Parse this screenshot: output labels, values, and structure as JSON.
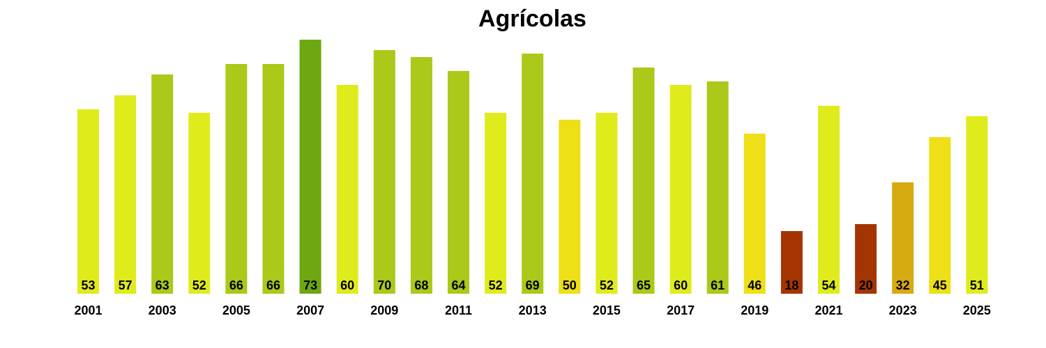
{
  "chart_data": {
    "type": "bar",
    "title": "Agrícolas",
    "xlabel": "",
    "ylabel": "",
    "grid": false,
    "categories": [
      "2001",
      "2002",
      "2003",
      "2004",
      "2005",
      "2006",
      "2007",
      "2008",
      "2009",
      "2010",
      "2011",
      "2012",
      "2013",
      "2014",
      "2015",
      "2016",
      "2017",
      "2018",
      "2019",
      "2020",
      "2021",
      "2022",
      "2023",
      "2024",
      "2025"
    ],
    "tick_labels": [
      "2001",
      "",
      "2003",
      "",
      "2005",
      "",
      "2007",
      "",
      "2009",
      "",
      "2011",
      "",
      "2013",
      "",
      "2015",
      "",
      "2017",
      "",
      "2019",
      "",
      "2021",
      "",
      "2023",
      "",
      "2025"
    ],
    "values": [
      53,
      57,
      63,
      52,
      66,
      66,
      73,
      60,
      70,
      68,
      64,
      52,
      69,
      50,
      52,
      65,
      60,
      61,
      46,
      18,
      54,
      20,
      32,
      45,
      51
    ],
    "colors": [
      "#e0eb1c",
      "#e0eb1c",
      "#aac918",
      "#e0eb1c",
      "#aac918",
      "#aac918",
      "#6da812",
      "#e0eb1c",
      "#aac918",
      "#aac918",
      "#aac918",
      "#e0eb1c",
      "#aac918",
      "#eedf16",
      "#e0eb1c",
      "#aac918",
      "#e0eb1c",
      "#aac918",
      "#eedf16",
      "#a43503",
      "#e0eb1c",
      "#a43503",
      "#d7aa12",
      "#eedf16",
      "#e0eb1c"
    ]
  }
}
